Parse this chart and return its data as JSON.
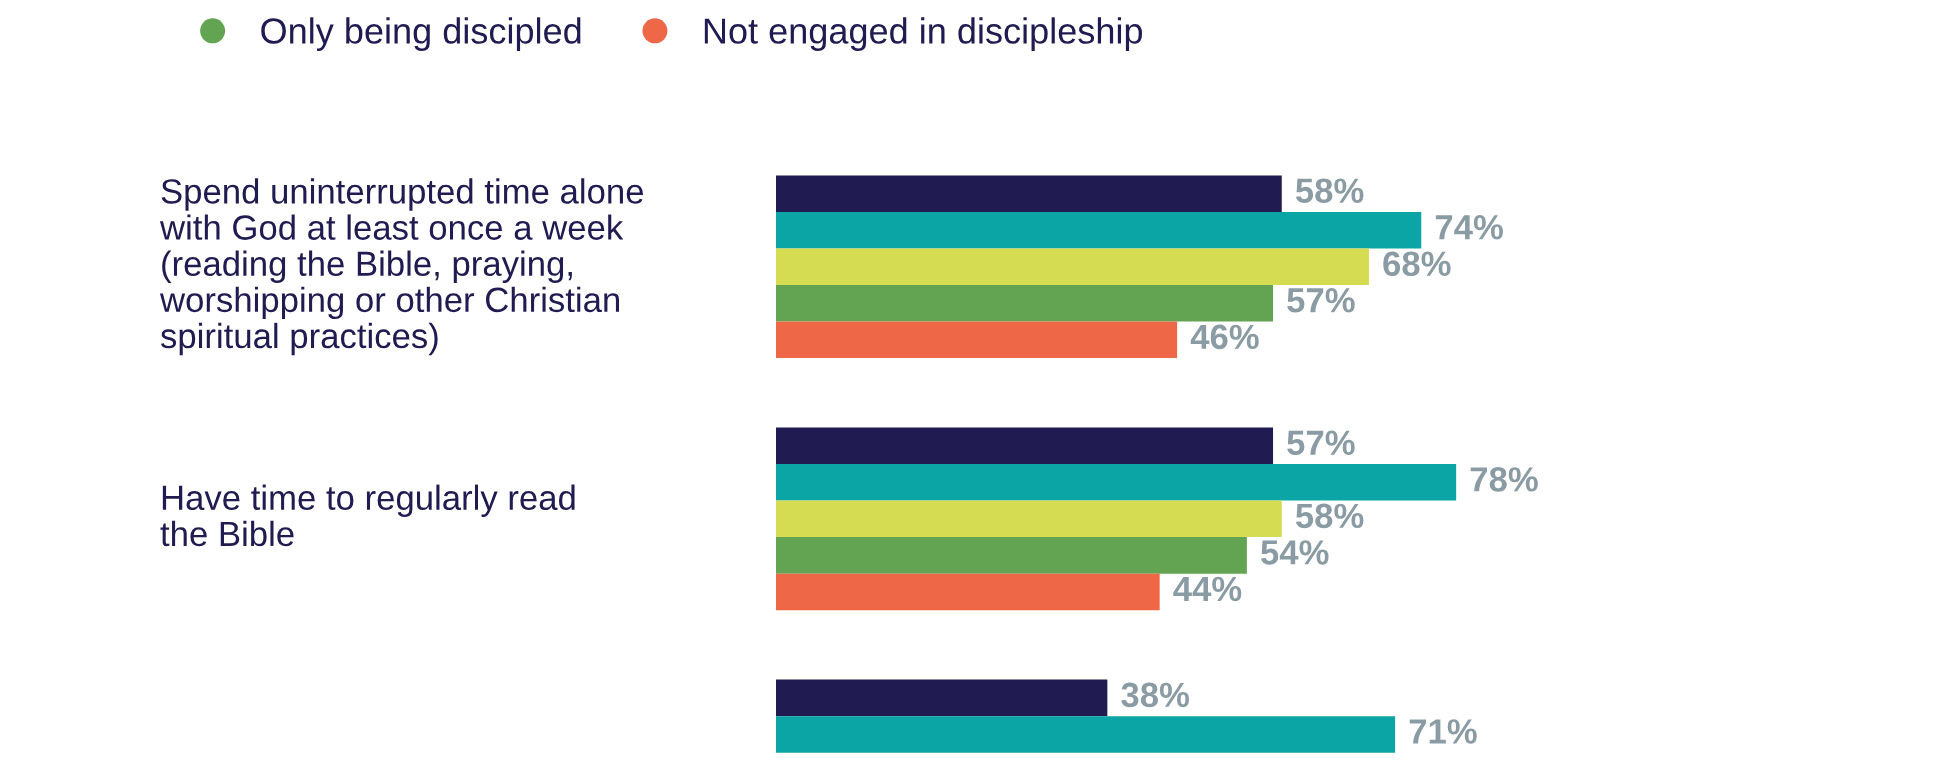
{
  "chart_data": {
    "type": "bar",
    "orientation": "horizontal",
    "categories": [
      "Spend uninterrupted time alone\nwith God at least once a week\n(reading the Bible, praying,\nworshipping or other Christian\nspiritual practices)",
      "Have time to regularly read\nthe Bible",
      null
    ],
    "series": [
      {
        "color": "#201b50",
        "values": [
          58,
          57,
          38
        ],
        "value_labels": [
          "58%",
          "57%",
          "38%"
        ]
      },
      {
        "color": "#0ca5a6",
        "values": [
          74,
          78,
          71
        ],
        "value_labels": [
          "74%",
          "78%",
          "71%"
        ]
      },
      {
        "color": "#d5dc52",
        "values": [
          68,
          58,
          null
        ],
        "value_labels": [
          "68%",
          "58%",
          null
        ]
      },
      {
        "name": "Only being discipled",
        "color": "#63a452",
        "values": [
          57,
          54,
          null
        ],
        "value_labels": [
          "57%",
          "54%",
          null
        ]
      },
      {
        "name": "Not engaged in discipleship",
        "color": "#ee6848",
        "values": [
          46,
          44,
          null
        ],
        "value_labels": [
          "46%",
          "44%",
          null
        ]
      }
    ],
    "legend": "top left"
  }
}
